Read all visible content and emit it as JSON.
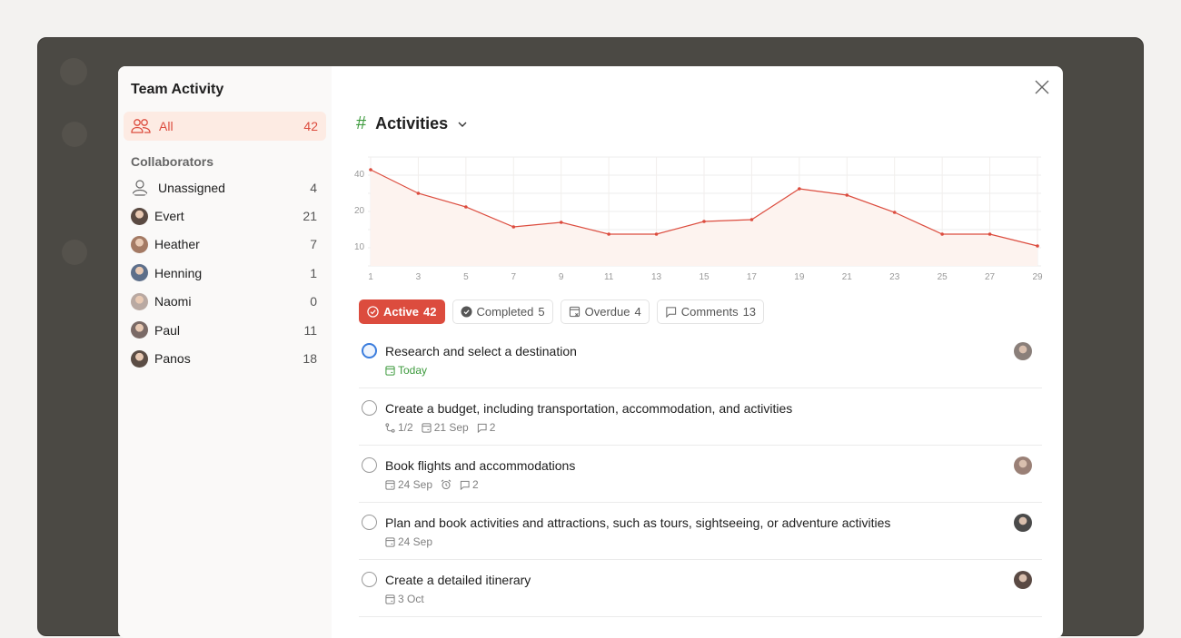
{
  "sidebar": {
    "title": "Team Activity",
    "all": {
      "label": "All",
      "count": "42"
    },
    "collaborators_heading": "Collaborators",
    "items": [
      {
        "name": "Unassigned",
        "count": "4",
        "avatar": "person-icon"
      },
      {
        "name": "Evert",
        "count": "21",
        "color": "#5a4a42"
      },
      {
        "name": "Heather",
        "count": "7",
        "color": "#a47a64"
      },
      {
        "name": "Henning",
        "count": "1",
        "color": "#5d6f8a"
      },
      {
        "name": "Naomi",
        "count": "0",
        "color": "#b9a9a2"
      },
      {
        "name": "Paul",
        "count": "11",
        "color": "#7a6a66"
      },
      {
        "name": "Panos",
        "count": "18",
        "color": "#5b4d45"
      }
    ]
  },
  "header": {
    "title": "Activities",
    "icon": "hash-icon"
  },
  "colors": {
    "accent": "#dc4c3e",
    "today": "#3d9a3d",
    "active_check": "#3b7ddd"
  },
  "chart_data": {
    "type": "area",
    "x": [
      1,
      3,
      5,
      7,
      9,
      11,
      13,
      15,
      17,
      19,
      21,
      23,
      25,
      27,
      29
    ],
    "values": [
      42,
      29,
      21.5,
      10.5,
      13,
      6.5,
      6.5,
      13.5,
      14.5,
      31.5,
      28,
      18.5,
      6.5,
      6.5,
      0
    ],
    "yticks": [
      "40",
      "20",
      "10"
    ],
    "grid": true,
    "color": "#dc4c3e"
  },
  "filters": [
    {
      "label": "Active",
      "count": "42",
      "icon": "check-circle-icon"
    },
    {
      "label": "Completed",
      "count": "5",
      "icon": "check-filled-icon"
    },
    {
      "label": "Overdue",
      "count": "4",
      "icon": "calendar-x-icon"
    },
    {
      "label": "Comments",
      "count": "13",
      "icon": "comment-icon"
    }
  ],
  "tasks": [
    {
      "title": "Research and select a destination",
      "date": "Today",
      "assignee": "#8a7f7a"
    },
    {
      "title": "Create a budget, including transportation, accommodation, and activities",
      "subtasks": "1/2",
      "date": "21 Sep",
      "comments": "2"
    },
    {
      "title": "Book flights and accommodations",
      "date": "24 Sep",
      "reminder": true,
      "comments": "2",
      "assignee": "#9a8076"
    },
    {
      "title": "Plan and book activities and attractions, such as tours, sightseeing, or adventure activities",
      "date": "24 Sep",
      "assignee": "#4a4a4a"
    },
    {
      "title": "Create a detailed itinerary",
      "date": "3 Oct",
      "assignee": "#5a4a44"
    }
  ]
}
